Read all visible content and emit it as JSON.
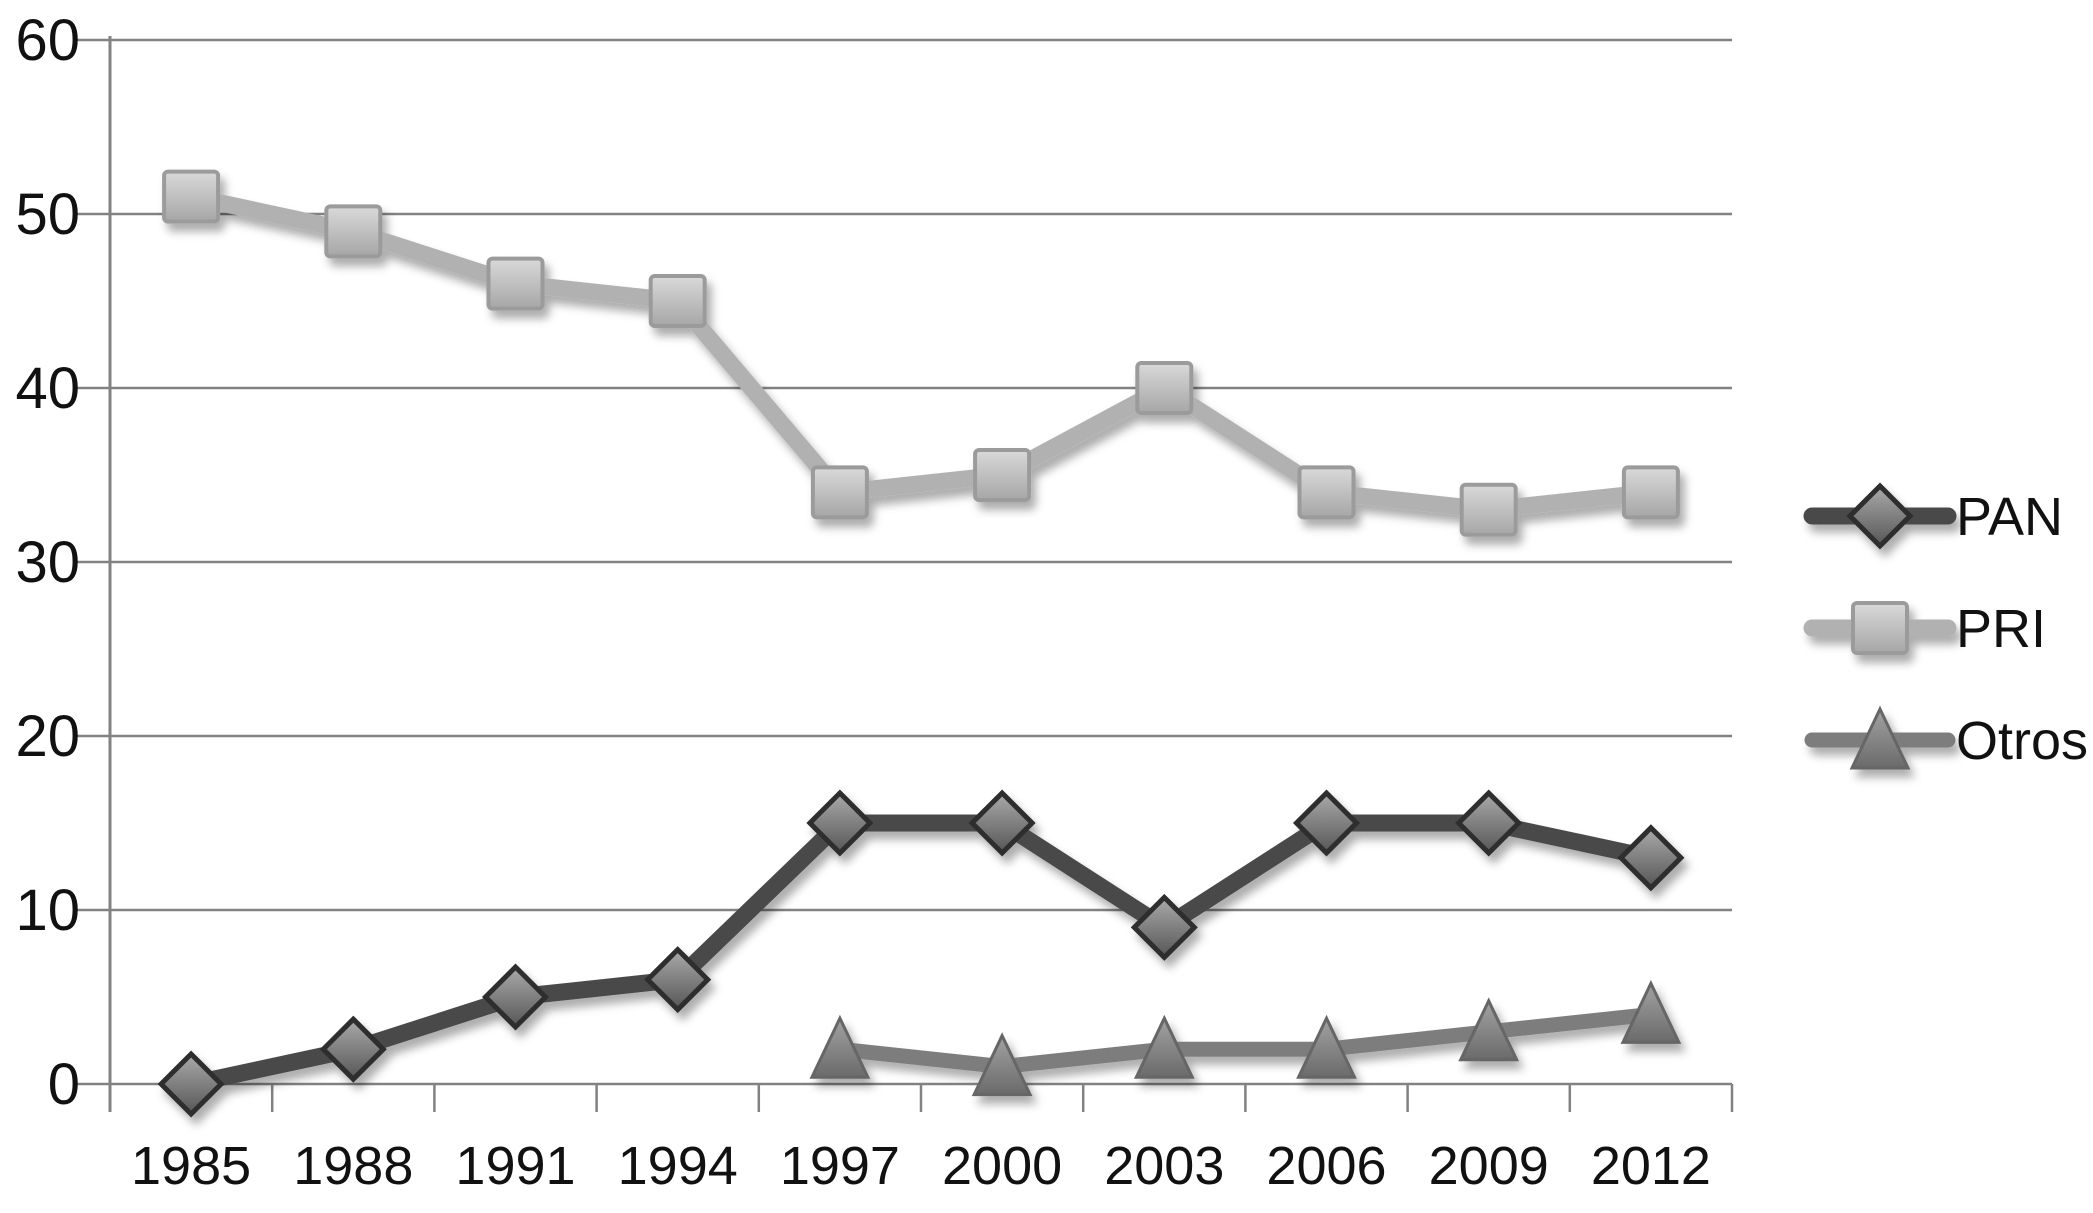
{
  "chart_data": {
    "type": "line",
    "title": "",
    "xlabel": "",
    "ylabel": "",
    "categories": [
      "1985",
      "1988",
      "1991",
      "1994",
      "1997",
      "2000",
      "2003",
      "2006",
      "2009",
      "2012"
    ],
    "series": [
      {
        "name": "PAN",
        "marker": "diamond",
        "values": [
          0,
          2,
          5,
          6,
          15,
          15,
          9,
          15,
          15,
          13
        ],
        "line_color": "#4a4a4a",
        "marker_fill_top": "#aaaaaa",
        "marker_fill_bottom": "#565656",
        "marker_stroke": "#2d2d2d"
      },
      {
        "name": "PRI",
        "marker": "square",
        "values": [
          51,
          49,
          46,
          45,
          34,
          35,
          40,
          34,
          33,
          34
        ],
        "line_color": "#b1b1b1",
        "marker_fill_top": "#d9d9d9",
        "marker_fill_bottom": "#a6a6a6",
        "marker_stroke": "#9b9b9b"
      },
      {
        "name": "Otros",
        "marker": "triangle",
        "values": [
          null,
          null,
          null,
          null,
          2,
          1,
          2,
          2,
          3,
          4
        ],
        "line_color": "#7d7d7d",
        "marker_fill_top": "#a2a2a2",
        "marker_fill_bottom": "#6a6a6a",
        "marker_stroke": "#666666"
      }
    ],
    "ylim": [
      0,
      60
    ],
    "yticks": [
      0,
      10,
      20,
      30,
      40,
      50,
      60
    ],
    "grid": true,
    "grid_color": "#828282",
    "axis_color": "#828282",
    "text_color": "#111111",
    "legend_position": "right",
    "legend_items": [
      "PAN",
      "PRI",
      "Otros"
    ]
  }
}
